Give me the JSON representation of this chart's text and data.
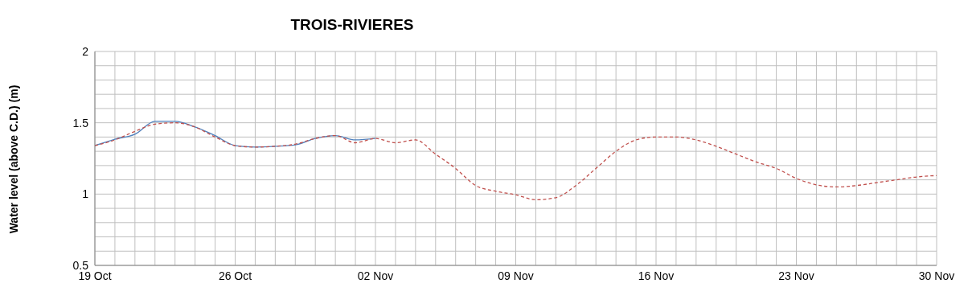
{
  "chart_data": {
    "type": "line",
    "title": "TROIS-RIVIERES",
    "ylabel": "Water level (above C.D.) (m)",
    "x": [
      "--10-19",
      "--10-20",
      "--10-21",
      "--10-22",
      "--10-23",
      "--10-24",
      "--10-25",
      "--10-26",
      "--10-27",
      "--10-28",
      "--10-29",
      "--10-30",
      "--10-31",
      "--11-01",
      "--11-02",
      "--11-03",
      "--11-04",
      "--11-05",
      "--11-06",
      "--11-07",
      "--11-08",
      "--11-09",
      "--11-10",
      "--11-11",
      "--11-12",
      "--11-13",
      "--11-14",
      "--11-15",
      "--11-16",
      "--11-17",
      "--11-18",
      "--11-19",
      "--11-20",
      "--11-21",
      "--11-22",
      "--11-23",
      "--11-24",
      "--11-25",
      "--11-26",
      "--11-27",
      "--11-28",
      "--11-29",
      "--11-30"
    ],
    "series": [
      {
        "color": "#4f81bd",
        "line_style": "solid",
        "values": [
          1.34,
          1.385,
          1.42,
          1.51,
          1.51,
          1.47,
          1.41,
          1.34,
          1.33,
          1.335,
          1.345,
          1.39,
          1.41,
          1.38,
          1.39,
          null,
          null,
          null,
          null,
          null,
          null,
          null,
          null,
          null,
          null,
          null,
          null,
          null,
          null,
          null,
          null,
          null,
          null,
          null,
          null,
          null,
          null,
          null,
          null,
          null,
          null,
          null,
          null
        ]
      },
      {
        "color": "#c0504d",
        "line_style": "dashed",
        "values": [
          1.34,
          1.38,
          1.44,
          1.49,
          1.5,
          1.47,
          1.4,
          1.34,
          1.33,
          1.335,
          1.35,
          1.39,
          1.41,
          1.36,
          1.39,
          1.36,
          1.38,
          1.28,
          1.18,
          1.06,
          1.02,
          0.995,
          0.96,
          0.975,
          1.06,
          1.18,
          1.3,
          1.38,
          1.4,
          1.4,
          1.38,
          1.335,
          1.28,
          1.225,
          1.18,
          1.11,
          1.065,
          1.05,
          1.06,
          1.08,
          1.1,
          1.12,
          1.13
        ]
      }
    ],
    "xlim": [
      "--10-19",
      "--11-30"
    ],
    "xticks": [
      {
        "value": "--10-19",
        "label": "19 Oct"
      },
      {
        "value": "--10-20",
        "label": null
      },
      {
        "value": "--10-21",
        "label": null
      },
      {
        "value": "--10-22",
        "label": null
      },
      {
        "value": "--10-23",
        "label": null
      },
      {
        "value": "--10-24",
        "label": null
      },
      {
        "value": "--10-25",
        "label": null
      },
      {
        "value": "--10-26",
        "label": "26 Oct"
      },
      {
        "value": "--10-27",
        "label": null
      },
      {
        "value": "--10-28",
        "label": null
      },
      {
        "value": "--10-29",
        "label": null
      },
      {
        "value": "--10-30",
        "label": null
      },
      {
        "value": "--10-31",
        "label": null
      },
      {
        "value": "--11-01",
        "label": null
      },
      {
        "value": "--11-02",
        "label": "02 Nov"
      },
      {
        "value": "--11-03",
        "label": null
      },
      {
        "value": "--11-04",
        "label": null
      },
      {
        "value": "--11-05",
        "label": null
      },
      {
        "value": "--11-06",
        "label": null
      },
      {
        "value": "--11-07",
        "label": null
      },
      {
        "value": "--11-08",
        "label": null
      },
      {
        "value": "--11-09",
        "label": "09 Nov"
      },
      {
        "value": "--11-10",
        "label": null
      },
      {
        "value": "--11-11",
        "label": null
      },
      {
        "value": "--11-12",
        "label": null
      },
      {
        "value": "--11-13",
        "label": null
      },
      {
        "value": "--11-14",
        "label": null
      },
      {
        "value": "--11-15",
        "label": null
      },
      {
        "value": "--11-16",
        "label": "16 Nov"
      },
      {
        "value": "--11-17",
        "label": null
      },
      {
        "value": "--11-18",
        "label": null
      },
      {
        "value": "--11-19",
        "label": null
      },
      {
        "value": "--11-20",
        "label": null
      },
      {
        "value": "--11-21",
        "label": null
      },
      {
        "value": "--11-22",
        "label": null
      },
      {
        "value": "--11-23",
        "label": "23 Nov"
      },
      {
        "value": "--11-24",
        "label": null
      },
      {
        "value": "--11-25",
        "label": null
      },
      {
        "value": "--11-26",
        "label": null
      },
      {
        "value": "--11-27",
        "label": null
      },
      {
        "value": "--11-28",
        "label": null
      },
      {
        "value": "--11-29",
        "label": null
      },
      {
        "value": "--11-30",
        "label": "30 Nov"
      }
    ],
    "ylim": [
      0.5,
      2
    ],
    "yticks": [
      0.5,
      {
        "value": 0.6,
        "label": null
      },
      {
        "value": 0.7,
        "label": null
      },
      {
        "value": 0.8,
        "label": null
      },
      {
        "value": 0.9,
        "label": null
      },
      1,
      {
        "value": 1.1,
        "label": null
      },
      {
        "value": 1.2,
        "label": null
      },
      {
        "value": 1.3,
        "label": null
      },
      {
        "value": 1.4,
        "label": null
      },
      1.5,
      {
        "value": 1.6,
        "label": null
      },
      {
        "value": 1.7,
        "label": null
      },
      {
        "value": 1.8,
        "label": null
      },
      {
        "value": 1.9,
        "label": null
      },
      2
    ],
    "grid": true,
    "legend": false,
    "marker": "none"
  }
}
